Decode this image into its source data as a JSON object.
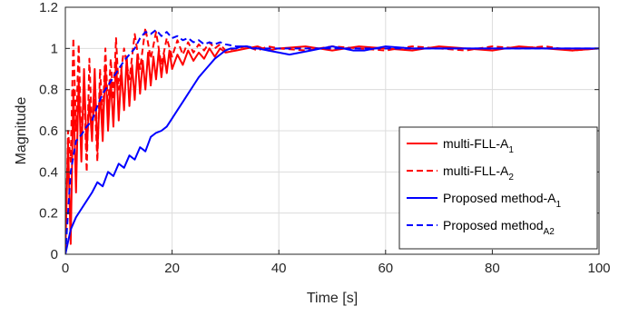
{
  "chart_data": {
    "type": "line",
    "xlabel": "Time [s]",
    "ylabel": "Magnitude",
    "xlim": [
      0,
      100
    ],
    "ylim": [
      0,
      1.2
    ],
    "xticks": [
      "0",
      "20",
      "40",
      "60",
      "80",
      "100"
    ],
    "yticks": [
      "0",
      "0.2",
      "0.4",
      "0.6",
      "0.8",
      "1",
      "1.2"
    ],
    "grid": true,
    "legend_position": "lower-right",
    "series": [
      {
        "name": "multi-FLL-A",
        "name_sub": "1",
        "color": "#ff0000",
        "dash": "solid",
        "x": [
          0,
          0.5,
          1,
          1.5,
          2,
          2.5,
          3,
          3.5,
          4,
          4.5,
          5,
          5.5,
          6,
          6.5,
          7,
          7.5,
          8,
          8.5,
          9,
          9.5,
          10,
          10.5,
          11,
          11.5,
          12,
          12.5,
          13,
          13.5,
          14,
          14.5,
          15,
          15.5,
          16,
          16.5,
          17,
          17.5,
          18,
          18.5,
          19,
          19.5,
          20,
          21,
          22,
          23,
          24,
          25,
          26,
          27,
          28,
          29,
          30,
          32,
          34,
          36,
          38,
          40,
          45,
          50,
          55,
          60,
          65,
          70,
          75,
          80,
          85,
          90,
          95,
          100
        ],
        "y": [
          0,
          0.55,
          0.05,
          0.8,
          0.3,
          0.85,
          0.45,
          0.9,
          0.5,
          0.75,
          0.55,
          0.9,
          0.5,
          0.8,
          0.55,
          0.92,
          0.6,
          0.85,
          0.62,
          0.95,
          0.65,
          0.9,
          0.7,
          0.96,
          0.72,
          0.92,
          0.75,
          0.97,
          0.78,
          0.94,
          0.8,
          0.98,
          0.82,
          0.96,
          0.85,
          0.99,
          0.86,
          0.97,
          0.88,
          0.99,
          0.9,
          0.97,
          0.92,
          0.99,
          0.94,
          0.98,
          0.95,
          1.0,
          0.96,
          1.0,
          0.98,
          0.99,
          1.0,
          1.01,
          0.99,
          1.0,
          1.01,
          0.99,
          1.01,
          1.0,
          0.99,
          1.01,
          1.0,
          0.99,
          1.01,
          1.0,
          0.99,
          1.0
        ]
      },
      {
        "name": "multi-FLL-A",
        "name_sub": "2",
        "color": "#ff0000",
        "dash": "dashed",
        "x": [
          0,
          0.5,
          1,
          1.5,
          2,
          2.5,
          3,
          3.5,
          4,
          4.5,
          5,
          5.5,
          6,
          6.5,
          7,
          7.5,
          8,
          8.5,
          9,
          9.5,
          10,
          11,
          12,
          13,
          14,
          15,
          16,
          17,
          18,
          19,
          20,
          21,
          22,
          23,
          24,
          25,
          26,
          27,
          28,
          29,
          30,
          32,
          34,
          36,
          38,
          40,
          45,
          50,
          55,
          60,
          65,
          70,
          75,
          80,
          85,
          90,
          95,
          100
        ],
        "y": [
          0,
          0.6,
          0.45,
          1.05,
          0.6,
          1.02,
          0.55,
          0.8,
          0.4,
          0.95,
          0.6,
          0.75,
          0.45,
          0.9,
          0.65,
          1.0,
          0.7,
          0.95,
          0.75,
          1.05,
          0.8,
          1.0,
          0.85,
          1.07,
          0.9,
          1.1,
          0.95,
          1.08,
          0.92,
          1.05,
          0.96,
          1.04,
          0.97,
          1.03,
          0.98,
          1.02,
          0.99,
          1.03,
          1.0,
          1.02,
          0.99,
          1.0,
          1.01,
          0.99,
          1.01,
          1.0,
          0.99,
          1.01,
          1.0,
          0.99,
          1.01,
          1.0,
          0.99,
          1.01,
          1.0,
          1.01,
          0.99,
          1.0
        ]
      },
      {
        "name": "Proposed method-A",
        "name_sub": "1",
        "color": "#0000ff",
        "dash": "solid",
        "x": [
          0,
          1,
          2,
          3,
          4,
          5,
          6,
          7,
          8,
          9,
          10,
          11,
          12,
          13,
          14,
          15,
          16,
          17,
          18,
          19,
          20,
          21,
          22,
          23,
          24,
          25,
          26,
          27,
          28,
          29,
          30,
          31,
          32,
          33,
          34,
          35,
          36,
          38,
          40,
          42,
          44,
          46,
          48,
          50,
          52,
          54,
          56,
          58,
          60,
          65,
          70,
          75,
          80,
          85,
          90,
          95,
          100
        ],
        "y": [
          0,
          0.12,
          0.18,
          0.22,
          0.26,
          0.3,
          0.35,
          0.33,
          0.4,
          0.38,
          0.44,
          0.42,
          0.48,
          0.46,
          0.52,
          0.5,
          0.57,
          0.59,
          0.6,
          0.62,
          0.66,
          0.7,
          0.74,
          0.78,
          0.82,
          0.86,
          0.89,
          0.92,
          0.95,
          0.97,
          0.99,
          1.0,
          1.0,
          1.01,
          1.01,
          1.0,
          1.0,
          0.99,
          0.98,
          0.97,
          0.98,
          0.99,
          1.0,
          1.01,
          1.0,
          0.99,
          0.99,
          1.0,
          1.01,
          1.0,
          1.0,
          1.0,
          1.0,
          1.0,
          1.0,
          1.0,
          1.0
        ]
      },
      {
        "name": "Proposed method",
        "name_sub": "A2",
        "color": "#0000ff",
        "dash": "dashed",
        "x": [
          0,
          1,
          2,
          3,
          4,
          5,
          6,
          7,
          8,
          9,
          10,
          11,
          12,
          13,
          14,
          15,
          16,
          17,
          18,
          19,
          20,
          21,
          22,
          23,
          24,
          25,
          26,
          27,
          28,
          29,
          30,
          32,
          34,
          36,
          38,
          40,
          45,
          50,
          55,
          60,
          65,
          70,
          75,
          80,
          85,
          90,
          95,
          100
        ],
        "y": [
          0,
          0.4,
          0.55,
          0.58,
          0.62,
          0.65,
          0.72,
          0.78,
          0.82,
          0.86,
          0.9,
          0.94,
          0.97,
          1.0,
          1.05,
          1.08,
          1.07,
          1.09,
          1.06,
          1.08,
          1.05,
          1.06,
          1.04,
          1.05,
          1.03,
          1.04,
          1.02,
          1.03,
          1.02,
          1.03,
          1.02,
          1.01,
          1.01,
          1.0,
          1.0,
          1.0,
          1.0,
          1.0,
          1.0,
          1.0,
          1.0,
          1.0,
          1.0,
          1.0,
          1.0,
          1.0,
          1.0,
          1.0
        ]
      }
    ]
  }
}
